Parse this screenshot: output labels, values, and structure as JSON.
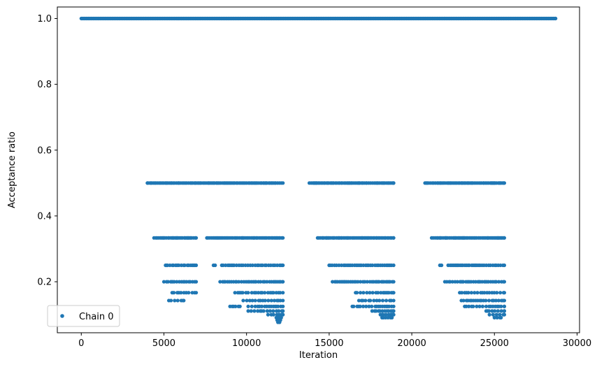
{
  "chart_data": {
    "type": "scatter",
    "xlabel": "Iteration",
    "ylabel": "Acceptance ratio",
    "xlim": [
      -1450,
      30150
    ],
    "ylim": [
      0.045,
      1.035
    ],
    "xticks": [
      0,
      5000,
      10000,
      15000,
      20000,
      25000,
      30000
    ],
    "yticks": [
      0.2,
      0.4,
      0.6,
      0.8,
      1.0
    ],
    "xtick_labels": [
      "0",
      "5000",
      "10000",
      "15000",
      "20000",
      "25000",
      "30000"
    ],
    "ytick_labels": [
      "0.2",
      "0.4",
      "0.6",
      "0.8",
      "1.0"
    ],
    "grid": false,
    "legend": {
      "position": "lower-left",
      "entries": [
        "Chain 0"
      ]
    },
    "color": "#1f77b4",
    "series": [
      {
        "name": "Chain 0",
        "bands": [
          {
            "y": 1.0,
            "ranges": [
              [
                0,
                28700
              ]
            ]
          },
          {
            "y": 0.5,
            "ranges": [
              [
                4000,
                6950
              ],
              [
                7050,
                12200
              ],
              [
                13800,
                18900
              ],
              [
                20800,
                25600
              ]
            ]
          },
          {
            "y": 0.3333,
            "ranges": [
              [
                4400,
                6950
              ],
              [
                7600,
                12200
              ],
              [
                14300,
                18900
              ],
              [
                21200,
                25600
              ]
            ]
          },
          {
            "y": 0.25,
            "ranges": [
              [
                5100,
                6950
              ],
              [
                8000,
                8100
              ],
              [
                8500,
                12200
              ],
              [
                15000,
                18900
              ],
              [
                21700,
                21800
              ],
              [
                22200,
                25600
              ]
            ]
          },
          {
            "y": 0.2,
            "ranges": [
              [
                5000,
                6950
              ],
              [
                8400,
                12200
              ],
              [
                15200,
                18900
              ],
              [
                22000,
                25600
              ]
            ]
          },
          {
            "y": 0.1667,
            "ranges": [
              [
                5500,
                6950
              ],
              [
                9300,
                12200
              ],
              [
                16600,
                18900
              ],
              [
                22900,
                25600
              ]
            ]
          },
          {
            "y": 0.1429,
            "ranges": [
              [
                5300,
                6200
              ],
              [
                9800,
                12200
              ],
              [
                16800,
                18900
              ],
              [
                23000,
                25600
              ]
            ]
          },
          {
            "y": 0.125,
            "ranges": [
              [
                9000,
                9600
              ],
              [
                10100,
                12200
              ],
              [
                16400,
                18900
              ],
              [
                23200,
                25600
              ]
            ]
          },
          {
            "y": 0.1111,
            "ranges": [
              [
                10100,
                12200
              ],
              [
                17600,
                18900
              ],
              [
                24500,
                25600
              ]
            ]
          },
          {
            "y": 0.1,
            "ranges": [
              [
                11300,
                12200
              ],
              [
                18100,
                18900
              ],
              [
                24700,
                25600
              ]
            ]
          },
          {
            "y": 0.0909,
            "ranges": [
              [
                11800,
                12100
              ],
              [
                18200,
                18800
              ],
              [
                25000,
                25400
              ]
            ]
          },
          {
            "y": 0.0833,
            "ranges": [
              [
                11850,
                12050
              ]
            ]
          },
          {
            "y": 0.0769,
            "ranges": [
              [
                11900,
                12000
              ]
            ]
          }
        ]
      }
    ]
  }
}
